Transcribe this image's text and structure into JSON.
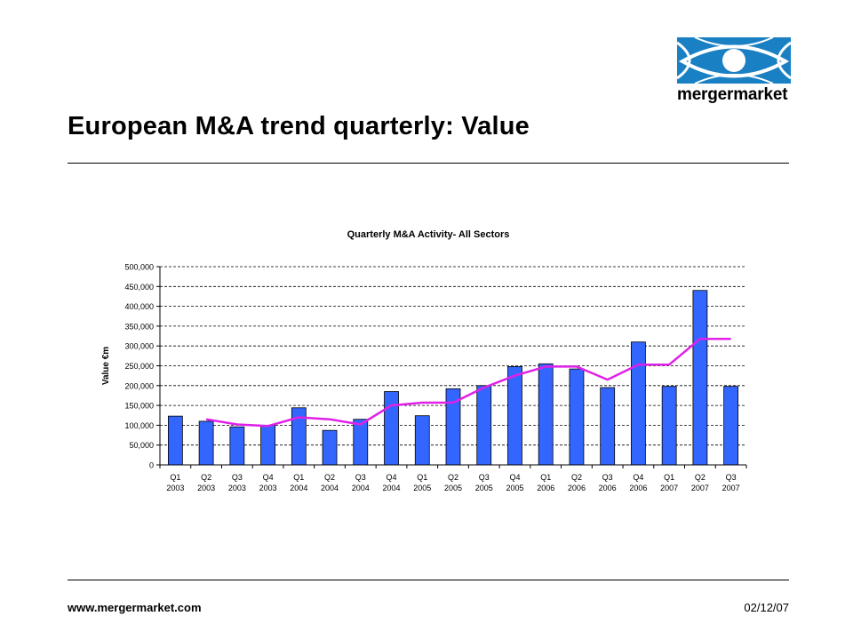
{
  "slide": {
    "title": "European M&A trend quarterly: Value",
    "footer_url": "www.mergermarket.com",
    "footer_date": "02/12/07"
  },
  "logo": {
    "text": "mergermarket",
    "icon": "eye-icon",
    "color": "#1a80c4"
  },
  "chart_data": {
    "type": "bar",
    "title": "Quarterly M&A Activity- All Sectors",
    "xlabel": "",
    "ylabel": "Value €m",
    "ylim": [
      0,
      500000
    ],
    "yticks": [
      0,
      50000,
      100000,
      150000,
      200000,
      250000,
      300000,
      350000,
      400000,
      450000,
      500000
    ],
    "ytick_labels": [
      "0",
      "50,000",
      "100,000",
      "150,000",
      "200,000",
      "250,000",
      "300,000",
      "350,000",
      "400,000",
      "450,000",
      "500,000"
    ],
    "grid": true,
    "categories": [
      [
        "Q1",
        "2003"
      ],
      [
        "Q2",
        "2003"
      ],
      [
        "Q3",
        "2003"
      ],
      [
        "Q4",
        "2003"
      ],
      [
        "Q1",
        "2004"
      ],
      [
        "Q2",
        "2004"
      ],
      [
        "Q3",
        "2004"
      ],
      [
        "Q4",
        "2004"
      ],
      [
        "Q1",
        "2005"
      ],
      [
        "Q2",
        "2005"
      ],
      [
        "Q3",
        "2005"
      ],
      [
        "Q4",
        "2005"
      ],
      [
        "Q1",
        "2006"
      ],
      [
        "Q2",
        "2006"
      ],
      [
        "Q3",
        "2006"
      ],
      [
        "Q4",
        "2006"
      ],
      [
        "Q1",
        "2007"
      ],
      [
        "Q2",
        "2007"
      ],
      [
        "Q3",
        "2007"
      ]
    ],
    "series": [
      {
        "kind": "bar",
        "color": "#3366ff",
        "values": [
          123000,
          110000,
          96000,
          100000,
          144000,
          87000,
          115000,
          185000,
          124000,
          192000,
          200000,
          248000,
          255000,
          242000,
          195000,
          310000,
          198000,
          440000,
          198000
        ]
      },
      {
        "kind": "line",
        "color": "#e020e8",
        "values": [
          null,
          115000,
          102000,
          98000,
          120000,
          115000,
          102000,
          150000,
          157000,
          157000,
          195000,
          225000,
          248000,
          248000,
          215000,
          253000,
          253000,
          318000,
          318000
        ]
      }
    ]
  }
}
